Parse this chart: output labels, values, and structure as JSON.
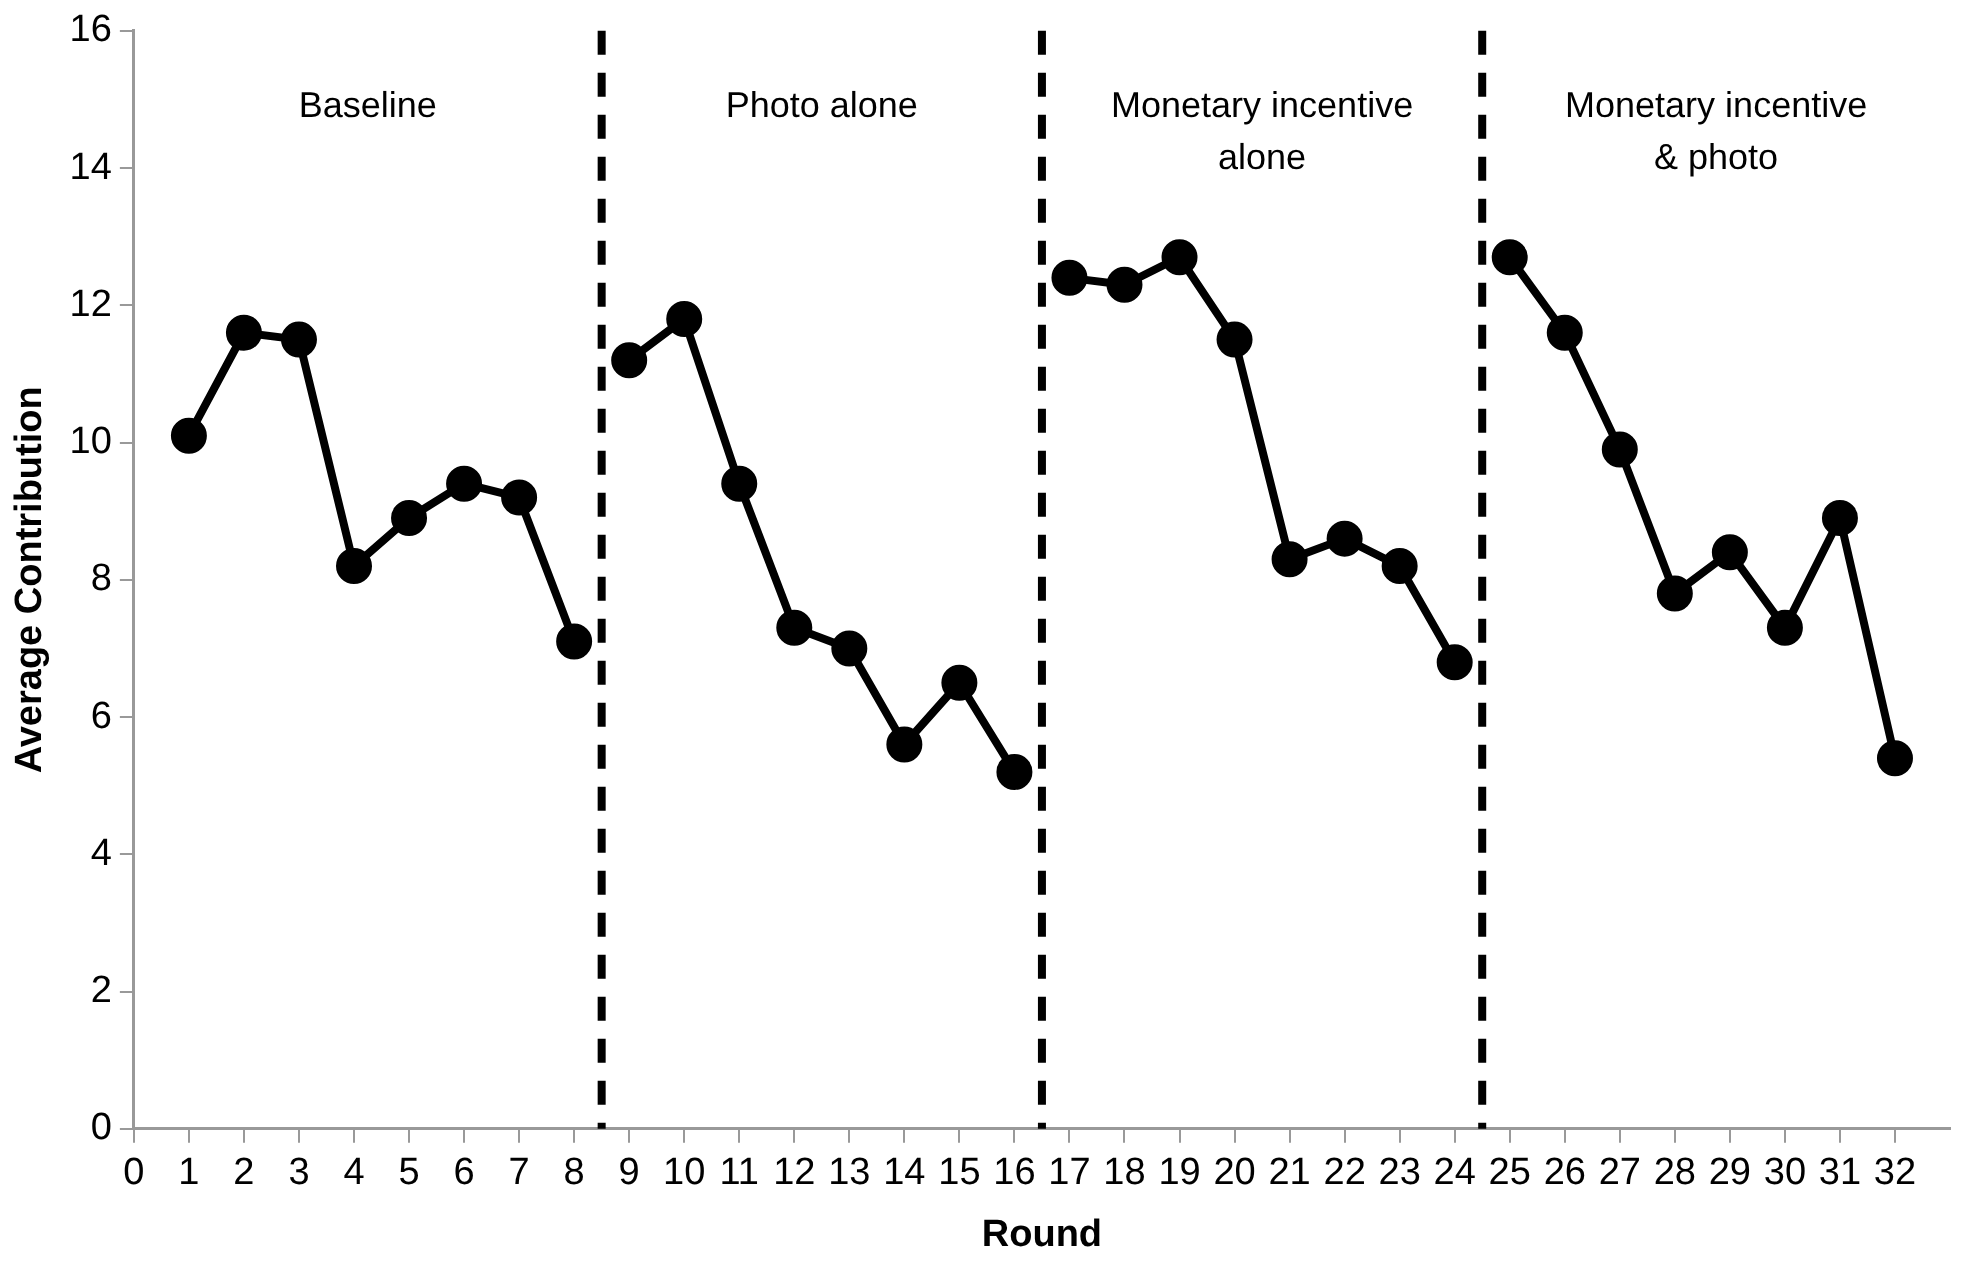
{
  "chart_data": {
    "type": "line",
    "xlabel": "Round",
    "ylabel": "Average Contribution",
    "series": [
      {
        "color": "#000000",
        "x": [
          1,
          2,
          3,
          4,
          5,
          6,
          7,
          8
        ],
        "values": [
          10.1,
          11.6,
          11.5,
          8.2,
          8.9,
          9.4,
          9.2,
          7.1
        ]
      },
      {
        "color": "#000000",
        "x": [
          9,
          10,
          11,
          12,
          13,
          14,
          15,
          16
        ],
        "values": [
          11.2,
          11.8,
          9.4,
          7.3,
          7.0,
          5.6,
          6.5,
          5.2
        ]
      },
      {
        "color": "#000000",
        "x": [
          17,
          18,
          19,
          20,
          21,
          22,
          23,
          24
        ],
        "values": [
          12.4,
          12.3,
          12.7,
          11.5,
          8.3,
          8.6,
          8.2,
          6.8
        ]
      },
      {
        "color": "#000000",
        "x": [
          25,
          26,
          27,
          28,
          29,
          30,
          31,
          32
        ],
        "values": [
          12.7,
          11.6,
          9.9,
          7.8,
          8.4,
          7.3,
          8.9,
          5.4
        ]
      }
    ],
    "marker": "circle",
    "line_style": "solid",
    "xlim": [
      0,
      33
    ],
    "xticks": [
      0,
      1,
      2,
      3,
      4,
      5,
      6,
      7,
      8,
      9,
      10,
      11,
      12,
      13,
      14,
      15,
      16,
      17,
      18,
      19,
      20,
      21,
      22,
      23,
      24,
      25,
      26,
      27,
      28,
      29,
      30,
      31,
      32
    ],
    "ylim": [
      0,
      16
    ],
    "yticks": [
      0,
      2,
      4,
      6,
      8,
      10,
      12,
      14,
      16
    ],
    "ref_lines": [
      {
        "axis": "x",
        "value": 8.5,
        "color": "#000000",
        "line_style": "dashed"
      },
      {
        "axis": "x",
        "value": 16.5,
        "color": "#000000",
        "line_style": "dashed"
      },
      {
        "axis": "x",
        "value": 24.5,
        "color": "#000000",
        "line_style": "dashed"
      }
    ],
    "annotations": [
      "Baseline",
      "Photo alone",
      "Monetary incentive\nalone",
      "Monetary incentive\n& photo"
    ]
  }
}
